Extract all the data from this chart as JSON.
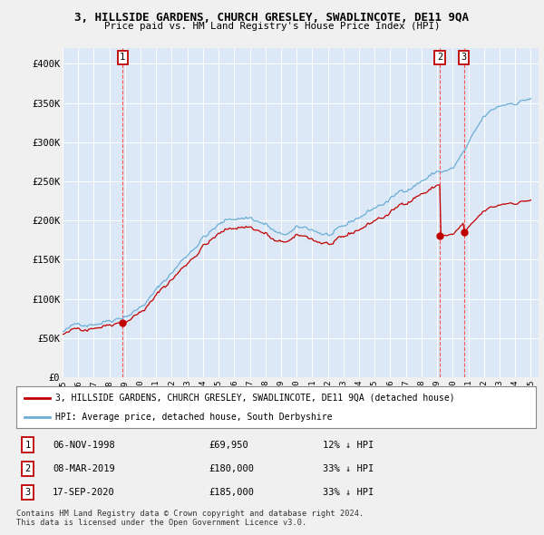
{
  "title": "3, HILLSIDE GARDENS, CHURCH GRESLEY, SWADLINCOTE, DE11 9QA",
  "subtitle": "Price paid vs. HM Land Registry's House Price Index (HPI)",
  "bg_color": "#dce8f5",
  "fig_bg_color": "#f0f0f0",
  "ylim": [
    0,
    420000
  ],
  "yticks": [
    0,
    50000,
    100000,
    150000,
    200000,
    250000,
    300000,
    350000,
    400000
  ],
  "ytick_labels": [
    "£0",
    "£50K",
    "£100K",
    "£150K",
    "£200K",
    "£250K",
    "£300K",
    "£350K",
    "£400K"
  ],
  "xlim_start": 1995.0,
  "xlim_end": 2025.5,
  "hpi_color": "#6baed6",
  "price_color": "#c00000",
  "vline_color": "#ff4444",
  "transactions": [
    {
      "label": "1",
      "date": 1998.85,
      "price": 69950,
      "below_hpi_pct": 0.12
    },
    {
      "label": "2",
      "date": 2019.18,
      "price": 180000,
      "below_hpi_pct": 0.33
    },
    {
      "label": "3",
      "date": 2020.72,
      "price": 185000,
      "below_hpi_pct": 0.33
    }
  ],
  "table_rows": [
    {
      "num": "1",
      "date": "06-NOV-1998",
      "price": "£69,950",
      "pct": "12% ↓ HPI"
    },
    {
      "num": "2",
      "date": "08-MAR-2019",
      "price": "£180,000",
      "pct": "33% ↓ HPI"
    },
    {
      "num": "3",
      "date": "17-SEP-2020",
      "price": "£185,000",
      "pct": "33% ↓ HPI"
    }
  ],
  "legend_line1": "3, HILLSIDE GARDENS, CHURCH GRESLEY, SWADLINCOTE, DE11 9QA (detached house)",
  "legend_line2": "HPI: Average price, detached house, South Derbyshire",
  "footer": "Contains HM Land Registry data © Crown copyright and database right 2024.\nThis data is licensed under the Open Government Licence v3.0.",
  "grid_color": "#ffffff",
  "xticks": [
    1995,
    1996,
    1997,
    1998,
    1999,
    2000,
    2001,
    2002,
    2003,
    2004,
    2005,
    2006,
    2007,
    2008,
    2009,
    2010,
    2011,
    2012,
    2013,
    2014,
    2015,
    2016,
    2017,
    2018,
    2019,
    2020,
    2021,
    2022,
    2023,
    2024,
    2025
  ]
}
